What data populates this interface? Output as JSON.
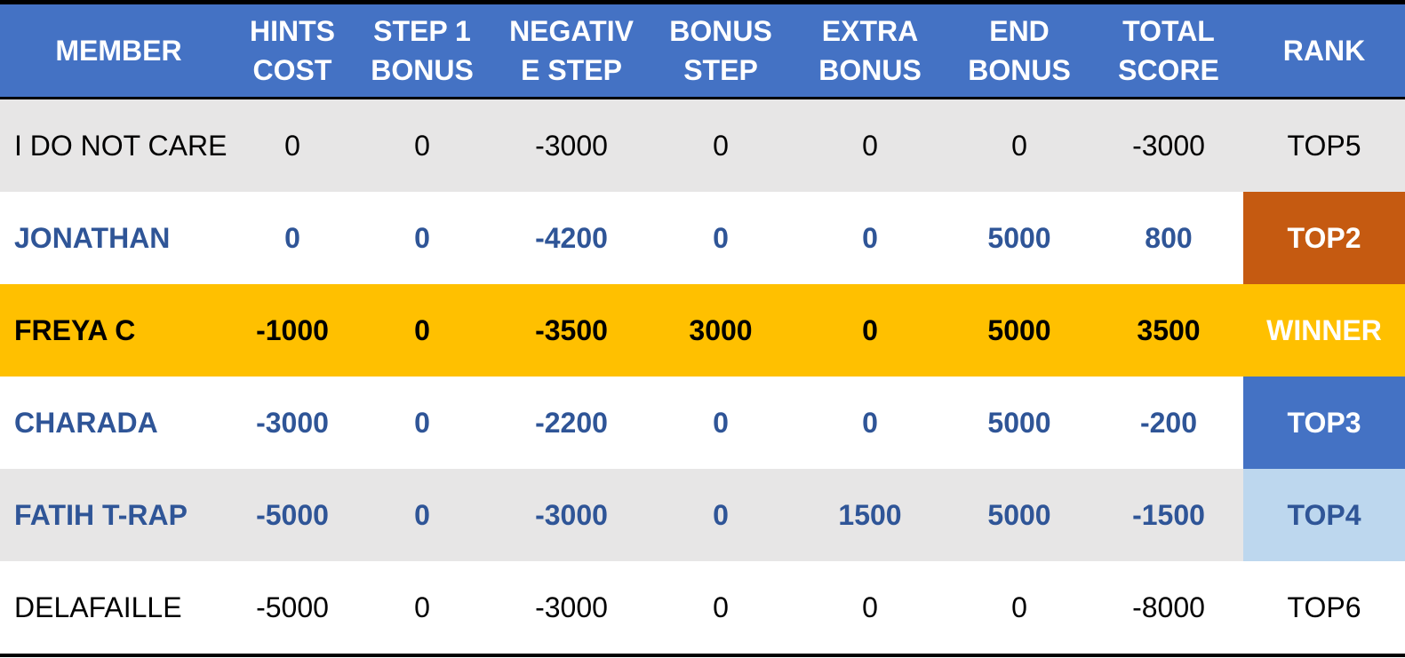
{
  "table": {
    "headers": [
      {
        "line1": "MEMBER",
        "line2": ""
      },
      {
        "line1": "HINTS",
        "line2": "COST"
      },
      {
        "line1": "STEP 1",
        "line2": "BONUS"
      },
      {
        "line1": "NEGATIV",
        "line2": "E STEP"
      },
      {
        "line1": "BONUS",
        "line2": "STEP"
      },
      {
        "line1": "EXTRA",
        "line2": "BONUS"
      },
      {
        "line1": "END",
        "line2": "BONUS"
      },
      {
        "line1": "TOTAL",
        "line2": "SCORE"
      },
      {
        "line1": "RANK",
        "line2": ""
      }
    ],
    "rows": [
      {
        "member": "I DO NOT CARE",
        "hints_cost": "0",
        "step1_bonus": "0",
        "negative_step": "-3000",
        "bonus_step": "0",
        "extra_bonus": "0",
        "end_bonus": "0",
        "total_score": "-3000",
        "rank": "TOP5",
        "style": "plain",
        "row_bg": "#e7e6e6",
        "rank_bg": "#e7e6e6",
        "rank_color": "#000000"
      },
      {
        "member": "JONATHAN",
        "hints_cost": "0",
        "step1_bonus": "0",
        "negative_step": "-4200",
        "bonus_step": "0",
        "extra_bonus": "0",
        "end_bonus": "5000",
        "total_score": "800",
        "rank": "TOP2",
        "style": "blue",
        "row_bg": "#ffffff",
        "rank_bg": "#c55a11",
        "rank_color": "#ffffff"
      },
      {
        "member": "FREYA C",
        "hints_cost": "-1000",
        "step1_bonus": "0",
        "negative_step": "-3500",
        "bonus_step": "3000",
        "extra_bonus": "0",
        "end_bonus": "5000",
        "total_score": "3500",
        "rank": "WINNER",
        "style": "winner",
        "row_bg": "#ffc000",
        "rank_bg": "#ffc000",
        "rank_color": "#ffffff"
      },
      {
        "member": "CHARADA",
        "hints_cost": "-3000",
        "step1_bonus": "0",
        "negative_step": "-2200",
        "bonus_step": "0",
        "extra_bonus": "0",
        "end_bonus": "5000",
        "total_score": "-200",
        "rank": "TOP3",
        "style": "blue",
        "row_bg": "#ffffff",
        "rank_bg": "#4472c4",
        "rank_color": "#ffffff"
      },
      {
        "member": "FATIH T-RAP",
        "hints_cost": "-5000",
        "step1_bonus": "0",
        "negative_step": "-3000",
        "bonus_step": "0",
        "extra_bonus": "1500",
        "end_bonus": "5000",
        "total_score": "-1500",
        "rank": "TOP4",
        "style": "blue",
        "row_bg": "#e7e6e6",
        "rank_bg": "#bdd7ee",
        "rank_color": "#2f5597"
      },
      {
        "member": "DELAFAILLE",
        "hints_cost": "-5000",
        "step1_bonus": "0",
        "negative_step": "-3000",
        "bonus_step": "0",
        "extra_bonus": "0",
        "end_bonus": "0",
        "total_score": "-8000",
        "rank": "TOP6",
        "style": "plain",
        "row_bg": "#ffffff",
        "rank_bg": "#ffffff",
        "rank_color": "#000000"
      }
    ]
  },
  "colors": {
    "header_bg": "#4472c4",
    "header_text": "#ffffff",
    "blue_text": "#2f5597",
    "winner_bg": "#ffc000",
    "gray_band": "#e7e6e6"
  }
}
